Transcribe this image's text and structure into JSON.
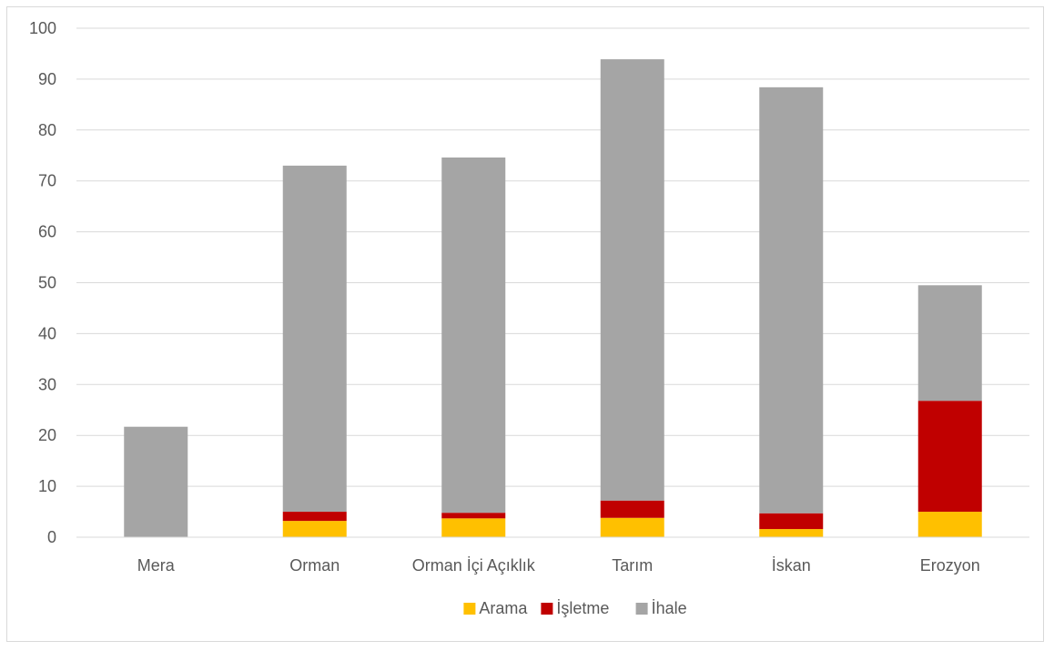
{
  "chart_data": {
    "type": "bar",
    "stacked": true,
    "categories": [
      "Mera",
      "Orman",
      "Orman İçi Açıklık",
      "Tarım",
      "İskan",
      "Erozyon"
    ],
    "series": [
      {
        "name": "Arama",
        "color": "#FFC000",
        "values": [
          0,
          3.2,
          3.7,
          3.8,
          1.6,
          5.0
        ]
      },
      {
        "name": "İşletme",
        "color": "#C00000",
        "values": [
          0,
          1.8,
          1.1,
          3.4,
          3.1,
          21.8
        ]
      },
      {
        "name": "İhale",
        "color": "#A5A5A5",
        "values": [
          21.7,
          68.0,
          69.8,
          86.7,
          83.7,
          22.7
        ]
      }
    ],
    "title": "",
    "xlabel": "",
    "ylabel": "",
    "ylim": [
      0,
      100
    ],
    "yticks": [
      0,
      10,
      20,
      30,
      40,
      50,
      60,
      70,
      80,
      90,
      100
    ],
    "grid": true,
    "legend": "bottom-center"
  }
}
